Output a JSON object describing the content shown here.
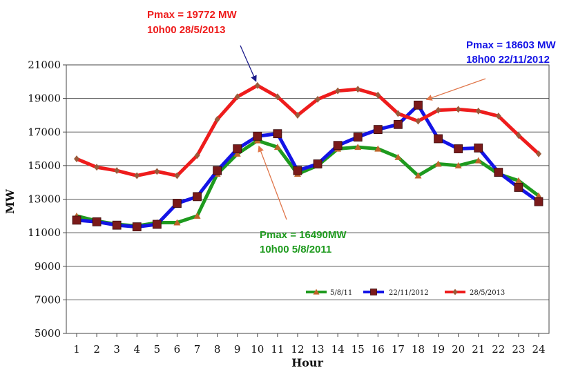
{
  "chart_data": {
    "type": "line",
    "title": "",
    "xlabel": "Hour",
    "ylabel": "MW",
    "x": [
      1,
      2,
      3,
      4,
      5,
      6,
      7,
      8,
      9,
      10,
      11,
      12,
      13,
      14,
      15,
      16,
      17,
      18,
      19,
      20,
      21,
      22,
      23,
      24
    ],
    "x_tick_labels": [
      "1",
      "2",
      "3",
      "4",
      "5",
      "6",
      "7",
      "8",
      "9",
      "10",
      "11",
      "12",
      "13",
      "14",
      "15",
      "16",
      "17",
      "18",
      "19",
      "20",
      "21",
      "22",
      "23",
      "24"
    ],
    "ylim": [
      5000,
      21000
    ],
    "y_ticks": [
      5000,
      7000,
      9000,
      11000,
      13000,
      15000,
      17000,
      19000,
      21000
    ],
    "y_tick_labels": [
      "5000",
      "7000",
      "9000",
      "11000",
      "13000",
      "15000",
      "17000",
      "19000",
      "21000"
    ],
    "grid": "horizontal",
    "legend_position": "bottom-right",
    "series": [
      {
        "name": "5/8/11",
        "color": "#1e9a1e",
        "marker": "triangle",
        "marker_color": "#c0642a",
        "values": [
          12000,
          11700,
          11500,
          11400,
          11600,
          11600,
          12000,
          14500,
          15700,
          16490,
          16100,
          14500,
          15000,
          16000,
          16100,
          16000,
          15500,
          14400,
          15100,
          15000,
          15300,
          14500,
          14100,
          13200
        ]
      },
      {
        "name": "22/11/2012",
        "color": "#1414e6",
        "marker": "square",
        "marker_color": "#7a1a1a",
        "values": [
          11750,
          11650,
          11450,
          11350,
          11500,
          12750,
          13150,
          14700,
          16000,
          16750,
          16900,
          14700,
          15100,
          16200,
          16700,
          17150,
          17450,
          18603,
          16600,
          16000,
          16050,
          14600,
          13700,
          12850
        ]
      },
      {
        "name": "28/5/2013",
        "color": "#ee1c1c",
        "marker": "diamond",
        "marker_color": "#9a5a3a",
        "values": [
          15400,
          14900,
          14700,
          14400,
          14650,
          14400,
          15600,
          17750,
          19100,
          19772,
          19100,
          18000,
          18950,
          19450,
          19550,
          19200,
          18100,
          17650,
          18300,
          18350,
          18250,
          17950,
          16800,
          15700
        ]
      }
    ],
    "annotations": [
      {
        "line1": "Pmax = 19772 MW",
        "line2": "10h00 28/5/2013",
        "color": "#ee1c1c",
        "points_to": {
          "series": "28/5/2013",
          "x": 10,
          "y": 19772
        },
        "arrow_color": "#1a1a8a"
      },
      {
        "line1": "Pmax = 18603 MW",
        "line2": "18h00 22/11/2012",
        "color": "#1414e6",
        "points_to": {
          "series": "22/11/2012",
          "x": 18,
          "y": 18603
        },
        "arrow_color": "#e0764a"
      },
      {
        "line1": "Pmax = 16490MW",
        "line2": "10h00 5/8/2011",
        "color": "#1e9a1e",
        "points_to": {
          "series": "5/8/11",
          "x": 10,
          "y": 16490
        },
        "arrow_color": "#e0764a"
      }
    ]
  }
}
